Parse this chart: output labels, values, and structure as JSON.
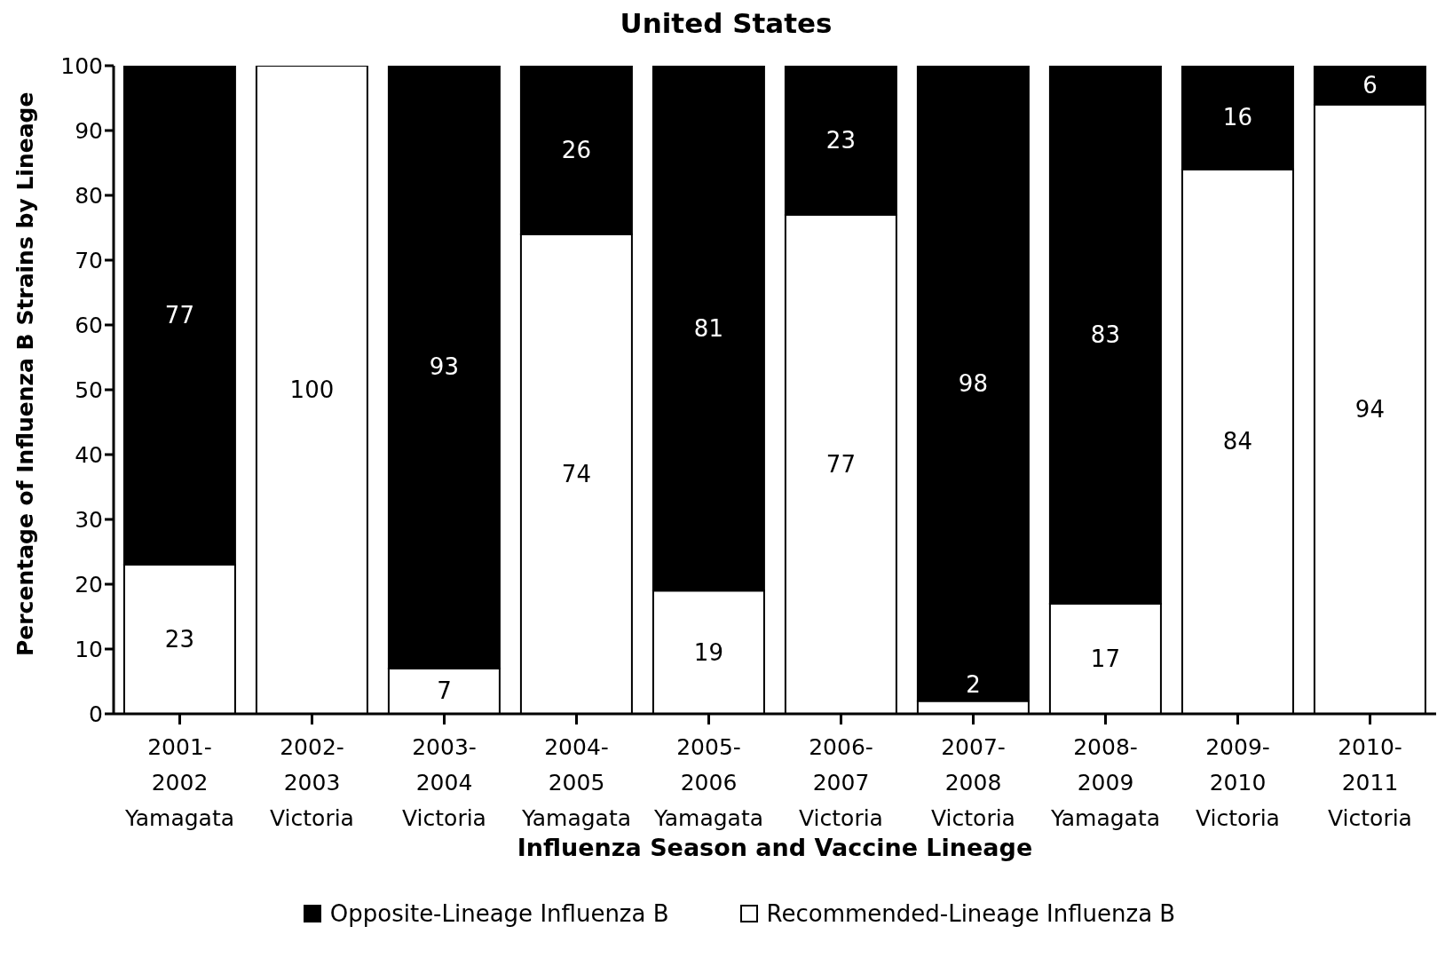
{
  "chart_data": {
    "type": "bar",
    "title": "United States",
    "xlabel": "Influenza Season and Vaccine Lineage",
    "ylabel": "Percentage of Influenza B Strains by Lineage",
    "categories": [
      "2001-\n2002\nYamagata",
      "2002-\n2003\nVictoria",
      "2003-\n2004\nVictoria",
      "2004-\n2005\nYamagata",
      "2005-\n2006\nYamagata",
      "2006-\n2007\nVictoria",
      "2007-\n2008\nVictoria",
      "2008-\n2009\nYamagata",
      "2009-\n2010\nVictoria",
      "2010-\n2011\nVictoria"
    ],
    "series": [
      {
        "name": "Recommended-Lineage Influenza B",
        "color": "#ffffff",
        "values": [
          23,
          100,
          7,
          74,
          19,
          77,
          2,
          17,
          84,
          94
        ]
      },
      {
        "name": "Opposite-Lineage Influenza B",
        "color": "#000000",
        "values": [
          77,
          null,
          93,
          26,
          81,
          23,
          98,
          83,
          16,
          6
        ]
      }
    ],
    "stacked": true,
    "ylim": [
      0,
      100
    ],
    "yticks": [
      0,
      10,
      20,
      30,
      40,
      50,
      60,
      70,
      80,
      90,
      100
    ],
    "grid": false,
    "legend": "bottom",
    "data_labels": true
  }
}
